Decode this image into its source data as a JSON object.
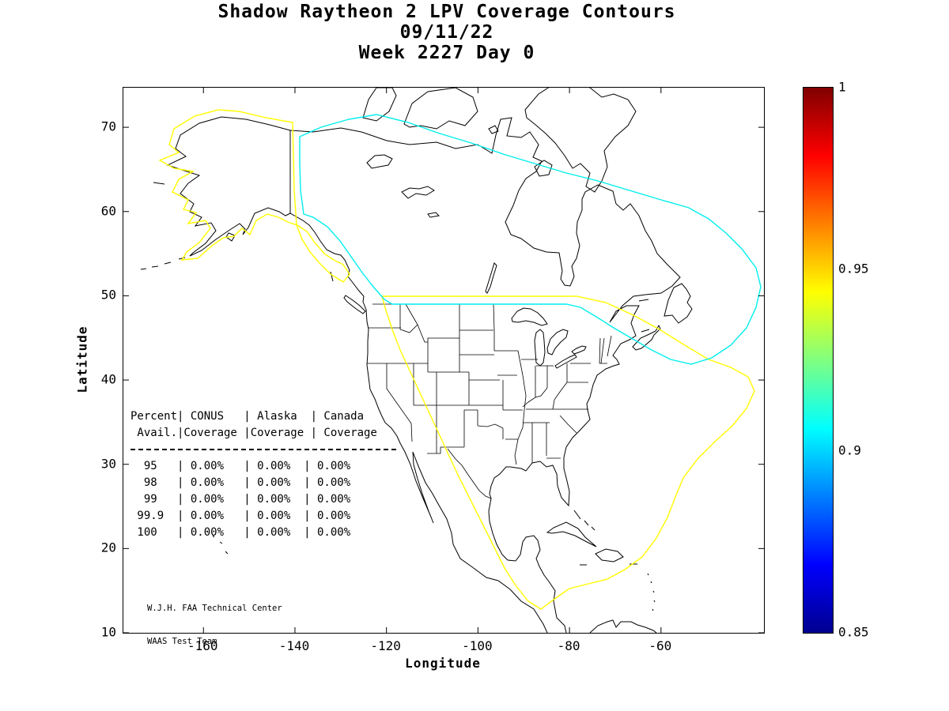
{
  "title": {
    "line1": "Shadow Raytheon 2 LPV Coverage Contours",
    "line2": "09/11/22",
    "line3": "Week 2227 Day 0"
  },
  "axes": {
    "xlabel": "Longitude",
    "ylabel": "Latitude",
    "xticks": [
      {
        "value": -160,
        "label": "-160"
      },
      {
        "value": -140,
        "label": "-140"
      },
      {
        "value": -120,
        "label": "-120"
      },
      {
        "value": -100,
        "label": "-100"
      },
      {
        "value": -80,
        "label": "-80"
      },
      {
        "value": -60,
        "label": "-60"
      }
    ],
    "yticks": [
      {
        "value": 70,
        "label": "70"
      },
      {
        "value": 60,
        "label": "60"
      },
      {
        "value": 50,
        "label": "50"
      },
      {
        "value": 40,
        "label": "40"
      },
      {
        "value": 30,
        "label": "30"
      },
      {
        "value": 20,
        "label": "20"
      },
      {
        "value": 10,
        "label": "10"
      }
    ]
  },
  "colorbar": {
    "colormap": "jet",
    "min": 0.85,
    "max": 1,
    "ticks": [
      {
        "value": 1,
        "label": "1"
      },
      {
        "value": 0.95,
        "label": "0.95"
      },
      {
        "value": 0.9,
        "label": "0.9"
      },
      {
        "value": 0.85,
        "label": "0.85"
      }
    ]
  },
  "contour_colors": {
    "yellow": "#ffff00",
    "cyan": "#00eeee",
    "coastline": "#000000"
  },
  "coverage_table": {
    "lines": [
      "Percent| CONUS   | Alaska  | Canada",
      " Avail.|Coverage |Coverage | Coverage",
      "  95   | 0.00%   | 0.00%  | 0.00%",
      "  98   | 0.00%   | 0.00%  | 0.00%",
      "  99   | 0.00%   | 0.00%  | 0.00%",
      " 99.9  | 0.00%   | 0.00%  | 0.00%",
      " 100   | 0.00%   | 0.00%  | 0.00%"
    ]
  },
  "attribution": {
    "line1": "W.J.H. FAA Technical Center",
    "line2": "WAAS Test Team"
  },
  "chart_data": {
    "type": "table",
    "title": "Shadow Raytheon 2 LPV Coverage Contours",
    "subtitle": [
      "09/11/22",
      "Week 2227 Day 0"
    ],
    "xlabel": "Longitude",
    "ylabel": "Latitude",
    "xlim": [
      -177.5,
      -37.5
    ],
    "ylim": [
      10,
      74.7
    ],
    "xticks": [
      -160,
      -140,
      -120,
      -100,
      -80,
      -60
    ],
    "yticks": [
      10,
      20,
      30,
      40,
      50,
      60,
      70
    ],
    "grid": false,
    "colorbar": {
      "range": [
        0.85,
        1.0
      ],
      "ticks": [
        0.85,
        0.9,
        0.95,
        1
      ],
      "colormap": "jet"
    },
    "contour_levels": [
      {
        "level": 0.95,
        "color": "#ffff00"
      },
      {
        "level": 0.9,
        "color": "#00eeee"
      }
    ],
    "columns": [
      "Percent Avail.",
      "CONUS Coverage",
      "Alaska Coverage",
      "Canada Coverage"
    ],
    "rows": [
      [
        "95",
        "0.00%",
        "0.00%",
        "0.00%"
      ],
      [
        "98",
        "0.00%",
        "0.00%",
        "0.00%"
      ],
      [
        "99",
        "0.00%",
        "0.00%",
        "0.00%"
      ],
      [
        "99.9",
        "0.00%",
        "0.00%",
        "0.00%"
      ],
      [
        "100",
        "0.00%",
        "0.00%",
        "0.00%"
      ]
    ]
  }
}
